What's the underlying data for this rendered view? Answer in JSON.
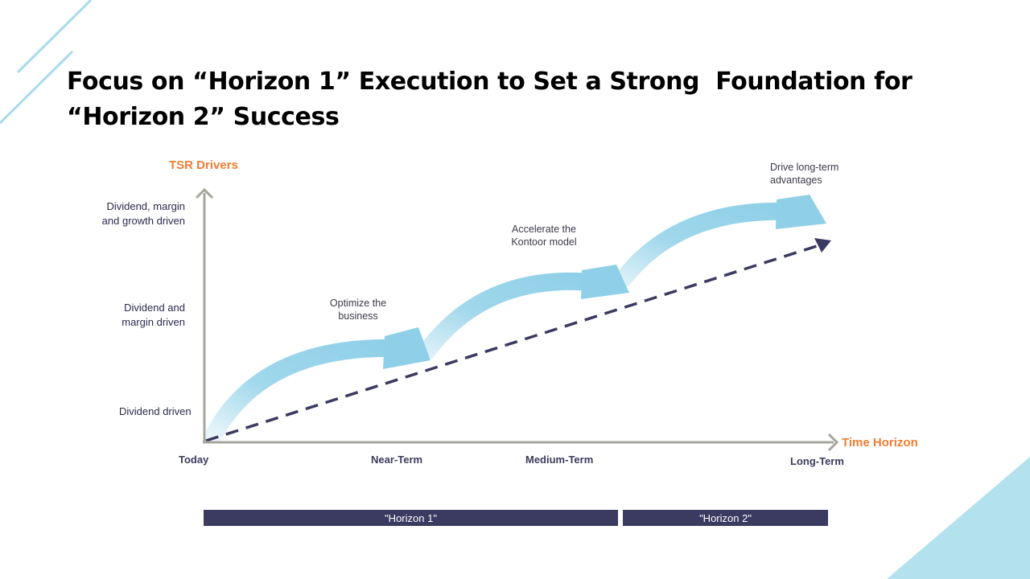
{
  "title": {
    "line1": "Focus on “Horizon 1” Execution to Set a Strong  Foundation for",
    "line2": "“Horizon 2” Success"
  },
  "chart_data": {
    "type": "diagram",
    "y_axis_title": "TSR Drivers",
    "x_axis_title": "Time Horizon",
    "y_levels": [
      {
        "line1": "Dividend driven",
        "line2": ""
      },
      {
        "line1": "Dividend and",
        "line2": "margin driven"
      },
      {
        "line1": "Dividend, margin",
        "line2": "and growth driven"
      }
    ],
    "x_ticks": [
      "Today",
      "Near-Term",
      "Medium-Term",
      "Long-Term"
    ],
    "stages": [
      {
        "line1": "Optimize the",
        "line2": "business"
      },
      {
        "line1": "Accelerate the",
        "line2": "Kontoor model"
      },
      {
        "line1": "Drive long-term",
        "line2": "advantages"
      }
    ],
    "horizons": [
      "\"Horizon 1\"",
      "\"Horizon 2\""
    ],
    "trend_line": "dashed"
  },
  "colors": {
    "accent_orange": "#ee7d31",
    "arrow_blue": "#8fd0e8",
    "dark_navy": "#3b3a60",
    "axis_gray": "#a6a59d"
  }
}
